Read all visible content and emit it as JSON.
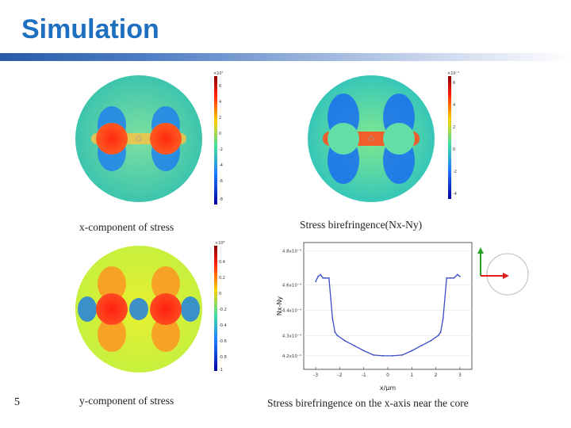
{
  "title": "Simulation",
  "slide_number": "5",
  "captions": {
    "top_left": "x-component of stress",
    "top_right": "Stress birefringence(Nx-Ny)",
    "bottom_left": "y-component of stress",
    "bottom_right": "Stress birefringence on the x-axis near the core"
  },
  "colors": {
    "title": "#1f6fc0",
    "background_field": "#2fbfa6",
    "hot_core": "#ff3b1f",
    "cool_core": "#63e0a8",
    "curve": "#3b4bc8",
    "arrow_y": "#2aa02a",
    "arrow_x": "#e02020"
  },
  "chart_data": [
    {
      "type": "heatmap",
      "title": "",
      "colorbar_scale": "×10⁷",
      "colorbar_ticks": [
        "6",
        "4",
        "2",
        "0",
        "-2",
        "-4",
        "-6",
        "-8"
      ]
    },
    {
      "type": "heatmap",
      "title": "",
      "colorbar_scale": "×10⁻⁵",
      "colorbar_ticks": [
        "6",
        "4",
        "2",
        "0",
        "-2",
        "-4"
      ]
    },
    {
      "type": "heatmap",
      "title": "",
      "colorbar_scale": "×10⁸",
      "colorbar_ticks": [
        "0.4",
        "0.2",
        "0",
        "-0.2",
        "-0.4",
        "-0.6",
        "-0.8",
        "-1"
      ]
    },
    {
      "type": "line",
      "title": "",
      "xlabel": "x/μm",
      "ylabel": "Nx-Ny",
      "x_ticks": [
        "-3",
        "-2",
        "-1",
        "0",
        "1",
        "2",
        "3"
      ],
      "y_ticks": [
        "4.8x10⁻⁴",
        "4.6x10⁻⁴",
        "4.4x10⁻⁴",
        "4.3x10⁻⁴",
        "4.2x10⁻⁴"
      ],
      "xlim": [
        -3.5,
        3.5
      ],
      "ylim": [
        4.1,
        4.85
      ],
      "series": [
        {
          "x": [
            -3.0,
            -2.9,
            -2.8,
            -2.7,
            -2.6,
            -2.45,
            -2.3,
            -2.2,
            -2.1,
            -1.8,
            -1.4,
            -1.0,
            -0.6,
            -0.2,
            0.2,
            0.6,
            1.0,
            1.4,
            1.8,
            2.1,
            2.2,
            2.3,
            2.45,
            2.6,
            2.75,
            2.9,
            3.0
          ],
          "y": [
            4.62,
            4.65,
            4.66,
            4.64,
            4.64,
            4.64,
            4.4,
            4.32,
            4.3,
            4.27,
            4.24,
            4.21,
            4.185,
            4.18,
            4.18,
            4.185,
            4.21,
            4.24,
            4.27,
            4.3,
            4.32,
            4.4,
            4.64,
            4.64,
            4.64,
            4.66,
            4.65
          ]
        }
      ]
    }
  ]
}
